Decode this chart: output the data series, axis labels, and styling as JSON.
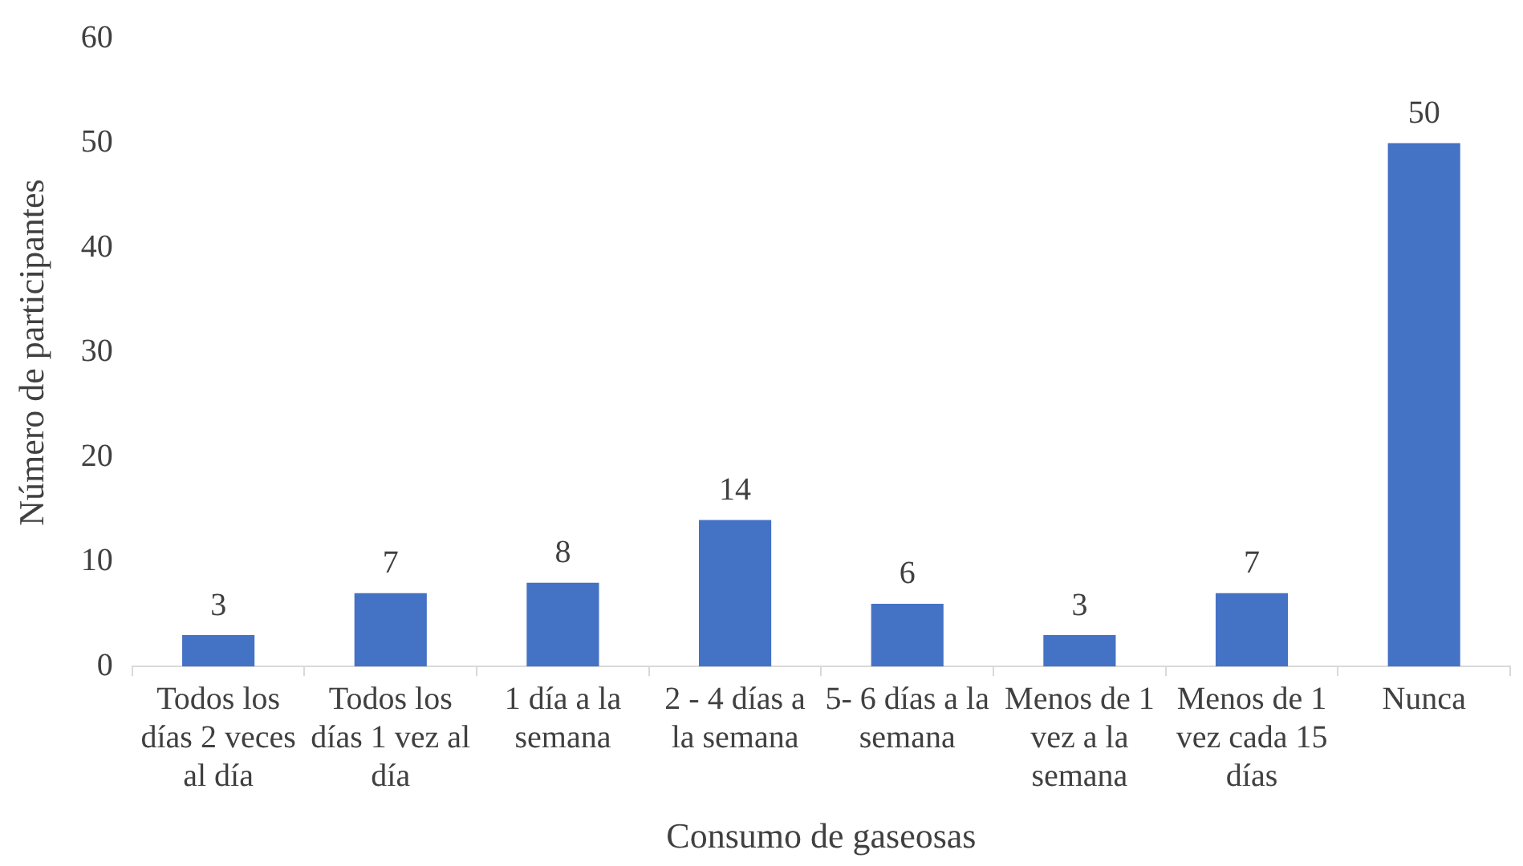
{
  "chart_data": {
    "type": "bar",
    "xlabel": "Consumo de gaseosas",
    "ylabel": "Número de participantes",
    "categories": [
      "Todos los días 2 veces al día",
      "Todos los días 1 vez al día",
      "1 día a la semana",
      "2 - 4 días a la semana",
      "5- 6 días a la semana",
      "Menos de 1 vez a la semana",
      "Menos de 1 vez cada 15 días",
      "Nunca"
    ],
    "values": [
      3,
      7,
      8,
      14,
      6,
      3,
      7,
      50
    ],
    "color": "#4472c4",
    "ylim": [
      0,
      60
    ],
    "yticks": [
      0,
      10,
      20,
      30,
      40,
      50,
      60
    ],
    "grid": false,
    "legend": false,
    "data_labels": true
  }
}
